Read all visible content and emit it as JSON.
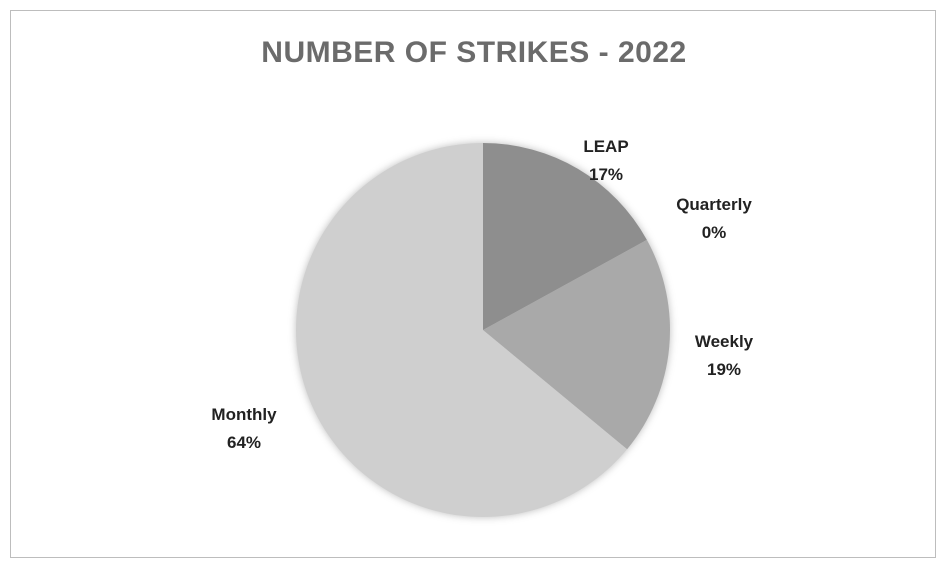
{
  "chart_data": {
    "type": "pie",
    "title": "NUMBER OF STRIKES - 2022",
    "slices": [
      {
        "name": "LEAP",
        "value": 17,
        "label_pct": "17%"
      },
      {
        "name": "Quarterly",
        "value": 0,
        "label_pct": "0%"
      },
      {
        "name": "Weekly",
        "value": 19,
        "label_pct": "19%"
      },
      {
        "name": "Monthly",
        "value": 64,
        "label_pct": "64%"
      }
    ],
    "colors": [
      "#8e8e8e",
      "#9f9f9f",
      "#a9a9a9",
      "#cfcfcf"
    ],
    "legend": "none"
  }
}
